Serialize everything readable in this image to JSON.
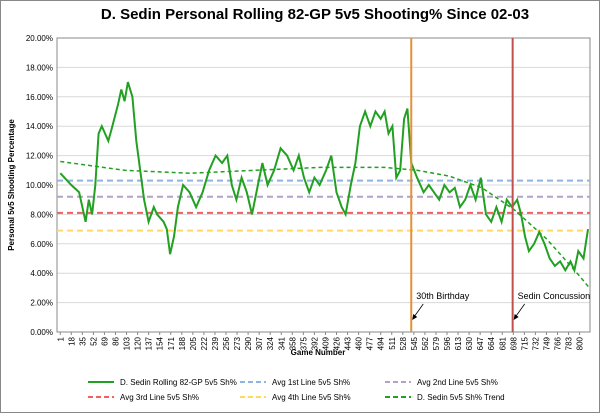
{
  "chart_data": {
    "type": "line",
    "title": "D. Sedin Personal Rolling 82-GP 5v5 Shooting% Since 02-03",
    "x_label": "Game Number",
    "y_label": "Personal 5v5 Shooting Percentage",
    "xlim": [
      -4,
      816
    ],
    "ylim": [
      0,
      20
    ],
    "xticks": [
      1,
      18,
      35,
      52,
      69,
      86,
      103,
      120,
      137,
      154,
      171,
      188,
      205,
      222,
      239,
      256,
      273,
      290,
      307,
      324,
      341,
      358,
      375,
      392,
      409,
      426,
      443,
      460,
      477,
      494,
      511,
      528,
      545,
      562,
      579,
      596,
      613,
      630,
      647,
      664,
      681,
      698,
      715,
      732,
      749,
      766,
      783,
      800
    ],
    "yticks": [
      {
        "value": 0,
        "label": "0.00%"
      },
      {
        "value": 2,
        "label": "2.00%"
      },
      {
        "value": 4,
        "label": "4.00%"
      },
      {
        "value": 6,
        "label": "6.00%"
      },
      {
        "value": 8,
        "label": "8.00%"
      },
      {
        "value": 10,
        "label": "10.00%"
      },
      {
        "value": 12,
        "label": "12.00%"
      },
      {
        "value": 14,
        "label": "14.00%"
      },
      {
        "value": 16,
        "label": "16.00%"
      },
      {
        "value": 18,
        "label": "18.00%"
      },
      {
        "value": 20,
        "label": "20.00%"
      }
    ],
    "grid": true,
    "series": [
      {
        "name": "D. Sedin Rolling 82-GP 5v5 Sh%",
        "color": "#22a022",
        "dash": false,
        "x": [
          1,
          18,
          30,
          40,
          45,
          50,
          55,
          60,
          65,
          75,
          80,
          90,
          95,
          100,
          105,
          112,
          118,
          124,
          130,
          137,
          145,
          150,
          160,
          165,
          170,
          176,
          182,
          190,
          200,
          210,
          220,
          230,
          240,
          250,
          258,
          265,
          272,
          280,
          288,
          296,
          305,
          312,
          320,
          330,
          340,
          350,
          360,
          368,
          376,
          384,
          392,
          400,
          410,
          418,
          426,
          434,
          440,
          448,
          455,
          462,
          470,
          478,
          486,
          494,
          500,
          506,
          512,
          518,
          524,
          530,
          535,
          541,
          550,
          560,
          568,
          576,
          584,
          592,
          600,
          608,
          616,
          624,
          632,
          640,
          648,
          656,
          664,
          672,
          680,
          688,
          696,
          704,
          710,
          716,
          722,
          730,
          738,
          746,
          754,
          762,
          770,
          778,
          786,
          792,
          798,
          806,
          813
        ],
        "values": [
          10.8,
          10,
          9.5,
          7.5,
          9,
          8,
          10,
          13.5,
          14,
          13,
          13.8,
          15.5,
          16.5,
          15.7,
          17,
          16,
          13,
          11,
          9,
          7.5,
          8.5,
          8,
          7.5,
          7,
          5.3,
          6.5,
          8.5,
          10,
          9.5,
          8.5,
          9.5,
          11,
          12,
          11.5,
          12,
          10,
          9,
          10.5,
          9.5,
          8,
          10,
          11.5,
          10,
          11,
          12.5,
          12,
          11,
          12,
          10.5,
          9.5,
          10.5,
          10,
          11,
          12,
          9.5,
          8.5,
          8,
          10,
          11.5,
          14,
          15,
          14,
          15,
          14.5,
          15,
          13.5,
          14,
          10.5,
          11,
          14.5,
          15.2,
          11.5,
          10.5,
          9.5,
          10,
          9.5,
          9,
          10,
          9.5,
          9.8,
          8.5,
          9,
          10,
          9,
          10.5,
          8,
          7.5,
          8.5,
          7.5,
          9,
          8.5,
          9,
          8,
          6.5,
          5.5,
          6,
          6.8,
          6,
          5,
          4.5,
          4.8,
          4.2,
          4.8,
          4.2,
          5.5,
          5,
          7
        ]
      },
      {
        "name": "D. Sedin 5v5 Sh% Trend",
        "color": "#22a022",
        "dash": true,
        "x": [
          1,
          100,
          200,
          300,
          400,
          500,
          550,
          600,
          650,
          700,
          750,
          800,
          815
        ],
        "values": [
          11.6,
          11,
          10.8,
          11,
          11.2,
          11.2,
          11,
          10.6,
          9.8,
          8.3,
          6.3,
          3.8,
          3
        ]
      }
    ],
    "reference_lines": [
      {
        "name": "Avg 1st Line 5v5 Sh%",
        "color": "#8fb4e3",
        "value": 10.3
      },
      {
        "name": "Avg 2nd Line 5v5 Sh%",
        "color": "#b3a2c7",
        "value": 9.2
      },
      {
        "name": "Avg 3rd Line 5v5 Sh%",
        "color": "#f06060",
        "value": 8.1
      },
      {
        "name": "Avg 4th Line 5v5 Sh%",
        "color": "#ffd966",
        "value": 6.9
      }
    ],
    "annotations": [
      {
        "text": "30th Birthday",
        "x": 541,
        "color": "#e69138"
      },
      {
        "text": "Sedin Concussion",
        "x": 697,
        "color": "#c0504d"
      }
    ]
  }
}
